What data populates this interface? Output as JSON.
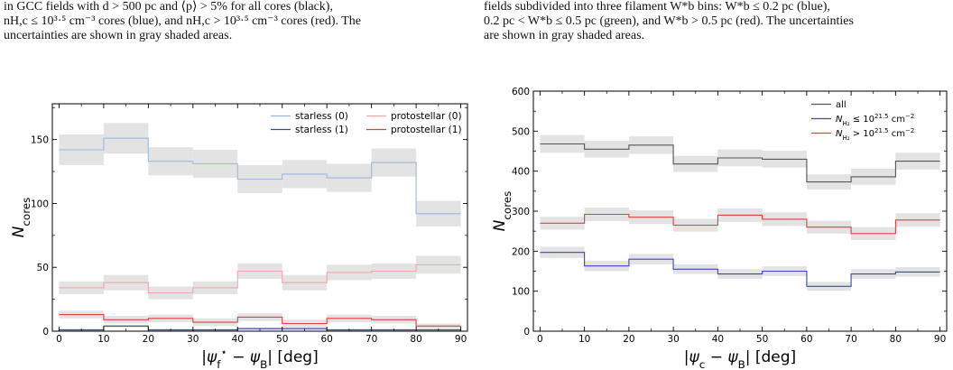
{
  "captions": {
    "left": [
      "in GCC fields with d > 500 pc and ⟨p⟩ > 5% for all cores (black),",
      "nH,c ≤ 10³·⁵ cm⁻³ cores (blue), and nH,c > 10³·⁵ cm⁻³ cores (red). The",
      "uncertainties are shown in gray shaded areas."
    ],
    "right": [
      "fields subdivided into three filament W*b bins: W*b ≤ 0.2 pc (blue),",
      "0.2 pc < W*b ≤ 0.5 pc (green), and W*b > 0.5 pc (red). The uncertainties",
      "are shown in gray shaded areas."
    ]
  },
  "chart_data": [
    {
      "type": "line",
      "step": true,
      "x_edges": [
        0,
        10,
        20,
        30,
        40,
        50,
        60,
        70,
        80,
        90
      ],
      "xlim": [
        -1.5,
        91.5
      ],
      "ylim": [
        0,
        178
      ],
      "xticks": [
        "0",
        "10",
        "20",
        "30",
        "40",
        "50",
        "60",
        "70",
        "80",
        "90"
      ],
      "yticks": [
        "0",
        "50",
        "100",
        "150"
      ],
      "ytick_values": [
        0,
        50,
        100,
        150
      ],
      "xlabel": "|ψ*f − ψB| [deg]",
      "ylabel": "Ncores",
      "legend": {
        "placement": "top-right",
        "columns": 2
      },
      "series": [
        {
          "name": "starless (0)",
          "color": "#9ab9de",
          "values": [
            142,
            151,
            133,
            131,
            119,
            123,
            120,
            132,
            92
          ],
          "err": [
            12,
            12,
            11,
            11,
            11,
            11,
            11,
            11,
            10
          ]
        },
        {
          "name": "starless (1)",
          "color": "#3c45b0",
          "values": [
            1,
            4,
            1,
            1,
            2,
            2,
            1,
            1,
            1
          ],
          "err": [
            1,
            1,
            1,
            1,
            1,
            1,
            1,
            1,
            1
          ]
        },
        {
          "name": "protostellar (0)",
          "color": "#f0a8a8",
          "values": [
            34,
            38,
            30,
            34,
            47,
            38,
            46,
            47,
            52
          ],
          "err": [
            5,
            6,
            5,
            5,
            6,
            6,
            6,
            6,
            7
          ]
        },
        {
          "name": "protostellar (1)",
          "color": "#e04040",
          "values": [
            13,
            9,
            10,
            7,
            11,
            6,
            10,
            9,
            4
          ],
          "err": [
            3,
            3,
            3,
            3,
            3,
            3,
            3,
            3,
            2
          ]
        }
      ]
    },
    {
      "type": "line",
      "step": true,
      "x_edges": [
        0,
        10,
        20,
        30,
        40,
        50,
        60,
        70,
        80,
        90
      ],
      "xlim": [
        -1.5,
        91.5
      ],
      "ylim": [
        0,
        600
      ],
      "xticks": [
        "0",
        "10",
        "20",
        "30",
        "40",
        "50",
        "60",
        "70",
        "80",
        "90"
      ],
      "yticks": [
        "0",
        "100",
        "200",
        "300",
        "400",
        "500",
        "600"
      ],
      "ytick_values": [
        0,
        100,
        200,
        300,
        400,
        500,
        600
      ],
      "xlabel": "|ψc − ψB| [deg]",
      "ylabel": "Ncores",
      "legend": {
        "placement": "top-right",
        "columns": 1
      },
      "series": [
        {
          "name": "all",
          "color": "#555555",
          "values": [
            468,
            455,
            465,
            418,
            433,
            430,
            373,
            386,
            425
          ],
          "err": [
            22,
            21,
            22,
            20,
            21,
            21,
            19,
            20,
            21
          ]
        },
        {
          "name": "NH2 ≤ 10^21.5 cm^−2",
          "color": "#3c45c0",
          "values": [
            197,
            163,
            180,
            155,
            143,
            150,
            112,
            143,
            148
          ],
          "err": [
            14,
            13,
            13,
            12,
            12,
            12,
            11,
            12,
            12
          ]
        },
        {
          "name": "NH2 > 10^21.5 cm^−2",
          "color": "#e04040",
          "values": [
            270,
            292,
            285,
            265,
            290,
            280,
            260,
            244,
            278
          ],
          "err": [
            16,
            17,
            17,
            16,
            17,
            17,
            16,
            16,
            17
          ]
        }
      ]
    }
  ]
}
